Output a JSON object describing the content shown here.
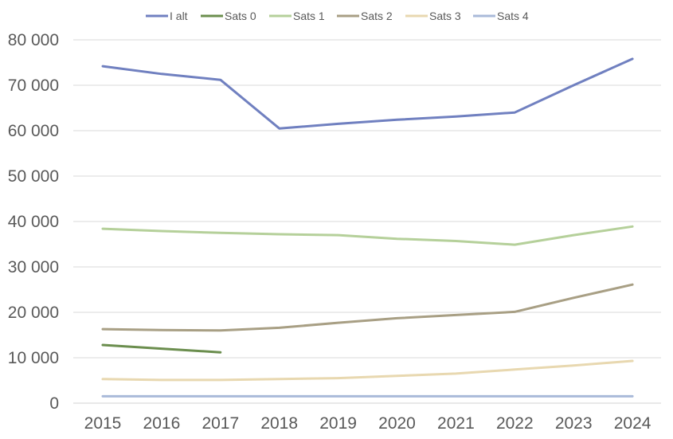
{
  "chart_data": {
    "type": "line",
    "title": "",
    "xlabel": "",
    "ylabel": "",
    "categories": [
      "2015",
      "2016",
      "2017",
      "2018",
      "2019",
      "2020",
      "2021",
      "2022",
      "2023",
      "2024"
    ],
    "y_tick_labels": [
      "0",
      "10 000",
      "20 000",
      "30 000",
      "40 000",
      "50 000",
      "60 000",
      "70 000",
      "80 000"
    ],
    "y_ticks": [
      0,
      10000,
      20000,
      30000,
      40000,
      50000,
      60000,
      70000,
      80000
    ],
    "ylim": [
      0,
      80000
    ],
    "grid": true,
    "legend_position": "top",
    "series": [
      {
        "name": "I alt",
        "color": "#7080c0",
        "values": [
          74200,
          72500,
          71200,
          60500,
          61500,
          62400,
          63100,
          64000,
          70000,
          75800
        ]
      },
      {
        "name": "Sats 0",
        "color": "#6b8e4e",
        "values": [
          12800,
          12000,
          11200,
          null,
          null,
          null,
          null,
          null,
          null,
          null
        ]
      },
      {
        "name": "Sats 1",
        "color": "#b5d09a",
        "values": [
          38400,
          37900,
          37500,
          37200,
          37000,
          36200,
          35700,
          34900,
          37000,
          38900
        ]
      },
      {
        "name": "Sats 2",
        "color": "#a89f84",
        "values": [
          16300,
          16100,
          16000,
          16600,
          17700,
          18700,
          19400,
          20100,
          23200,
          26100
        ]
      },
      {
        "name": "Sats 3",
        "color": "#e8d8b0",
        "values": [
          5300,
          5100,
          5100,
          5300,
          5500,
          6000,
          6500,
          7400,
          8300,
          9300
        ]
      },
      {
        "name": "Sats 4",
        "color": "#a9bad9",
        "values": [
          1500,
          1500,
          1500,
          1500,
          1500,
          1500,
          1500,
          1500,
          1500,
          1500
        ]
      }
    ]
  }
}
